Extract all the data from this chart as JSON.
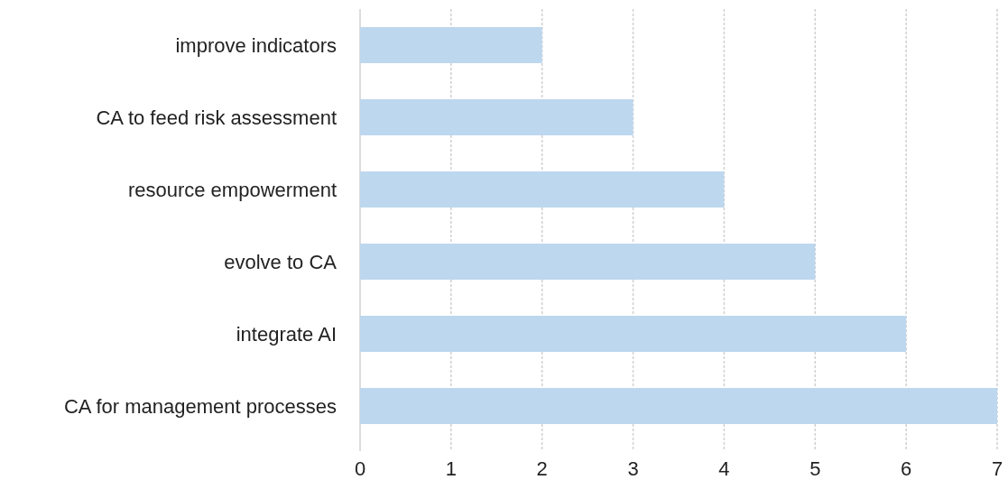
{
  "chart_data": {
    "type": "bar",
    "orientation": "horizontal",
    "categories": [
      "improve indicators",
      "CA to feed risk assessment",
      "resource empowerment",
      "evolve to CA",
      "integrate AI",
      "CA for management processes"
    ],
    "values": [
      2,
      3,
      4,
      5,
      6,
      7
    ],
    "color": "#bdd7ee",
    "xlim": [
      0,
      7
    ],
    "xticks": [
      0,
      1,
      2,
      3,
      4,
      5,
      6,
      7
    ],
    "grid": "x"
  }
}
